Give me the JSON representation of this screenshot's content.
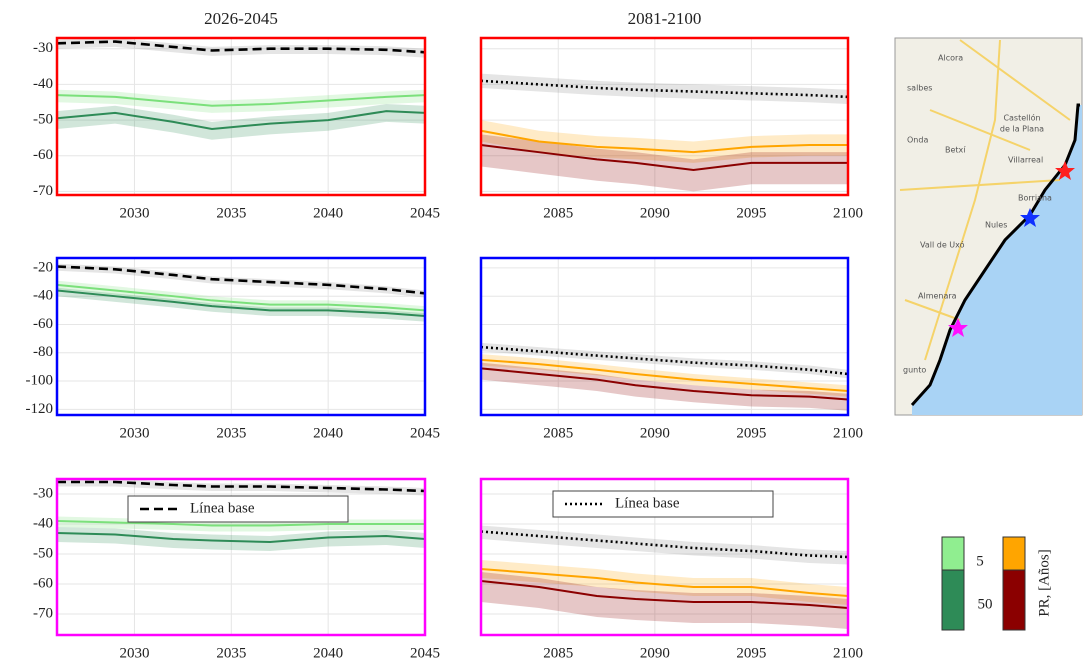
{
  "chart_data": [
    {
      "type": "line",
      "title": "2026-2045",
      "x": [
        2026,
        2029,
        2032,
        2034,
        2037,
        2040,
        2043,
        2045
      ],
      "xlim": [
        2026,
        2045
      ],
      "xticks": [
        2030,
        2035,
        2040,
        2045
      ],
      "ylim": [
        -71,
        -27
      ],
      "yticks": [
        -70,
        -60,
        -50,
        -40,
        -30
      ],
      "grid": true,
      "frame_color": "#ff0000",
      "show_ytick_labels": true,
      "series": [
        {
          "color": "#000000",
          "linestyle": "dashed",
          "values": [
            -28.5,
            -28,
            -29.5,
            -30.5,
            -30,
            -30,
            -30.3,
            -31
          ],
          "lower": [
            -30,
            -29.5,
            -31,
            -32,
            -31.5,
            -31.5,
            -31.8,
            -32.5
          ],
          "upper": [
            -27.5,
            -27,
            -28.5,
            -29.5,
            -29,
            -29,
            -29.3,
            -30
          ]
        },
        {
          "color": "#7be07b",
          "linestyle": "solid",
          "values": [
            -43,
            -43.5,
            -45,
            -46,
            -45.5,
            -44.5,
            -43.5,
            -43
          ],
          "lower": [
            -45,
            -45.5,
            -47,
            -48,
            -47.5,
            -46.5,
            -45.5,
            -45
          ],
          "upper": [
            -41.5,
            -42,
            -43.5,
            -44.5,
            -44,
            -43,
            -42,
            -41.5
          ]
        },
        {
          "color": "#2e8b57",
          "linestyle": "solid",
          "values": [
            -49.5,
            -48,
            -50.5,
            -52.5,
            -51,
            -50,
            -47.5,
            -48
          ],
          "lower": [
            -52.5,
            -51,
            -53.5,
            -55.5,
            -54,
            -53,
            -50.5,
            -51
          ],
          "upper": [
            -47.5,
            -46,
            -48.5,
            -50.5,
            -49,
            -48,
            -45.5,
            -46
          ]
        }
      ]
    },
    {
      "type": "line",
      "title": "2081-2100",
      "x": [
        2081,
        2084,
        2087,
        2089,
        2092,
        2095,
        2098,
        2100
      ],
      "xlim": [
        2081,
        2100
      ],
      "xticks": [
        2085,
        2090,
        2095,
        2100
      ],
      "ylim": [
        -71,
        -27
      ],
      "yticks": [
        -70,
        -60,
        -50,
        -40,
        -30
      ],
      "grid": true,
      "frame_color": "#ff0000",
      "show_ytick_labels": false,
      "series": [
        {
          "color": "#000000",
          "linestyle": "dotted",
          "values": [
            -39,
            -40,
            -41,
            -41.5,
            -42,
            -42.5,
            -43,
            -43.5
          ],
          "lower": [
            -41,
            -42,
            -43,
            -43.5,
            -44,
            -44.5,
            -45,
            -45.5
          ],
          "upper": [
            -37,
            -38,
            -39,
            -39.5,
            -40,
            -40.5,
            -41,
            -41.5
          ]
        },
        {
          "color": "#ffa500",
          "linestyle": "solid",
          "values": [
            -53,
            -56,
            -57.5,
            -58,
            -59,
            -57.5,
            -57,
            -57
          ],
          "lower": [
            -56,
            -59,
            -60.5,
            -61,
            -62,
            -60.5,
            -60,
            -60
          ],
          "upper": [
            -50,
            -53,
            -54.5,
            -55,
            -56,
            -54.5,
            -54,
            -54
          ]
        },
        {
          "color": "#8b0000",
          "linestyle": "solid",
          "values": [
            -57,
            -59,
            -61,
            -62,
            -64,
            -62,
            -62,
            -62
          ],
          "lower": [
            -63,
            -65,
            -67,
            -68,
            -70,
            -68,
            -68,
            -68
          ],
          "upper": [
            -54,
            -56,
            -58,
            -59,
            -61,
            -59,
            -59,
            -59
          ]
        }
      ]
    },
    {
      "type": "line",
      "x": [
        2026,
        2029,
        2032,
        2034,
        2037,
        2040,
        2043,
        2045
      ],
      "xlim": [
        2026,
        2045
      ],
      "xticks": [
        2030,
        2035,
        2040,
        2045
      ],
      "ylim": [
        -124,
        -13
      ],
      "yticks": [
        -120,
        -100,
        -80,
        -60,
        -40,
        -20
      ],
      "grid": true,
      "frame_color": "#0000ff",
      "show_ytick_labels": true,
      "series": [
        {
          "color": "#000000",
          "linestyle": "dashed",
          "values": [
            -19,
            -21,
            -25,
            -28,
            -30,
            -32,
            -35,
            -38
          ],
          "lower": [
            -22,
            -24,
            -28,
            -31,
            -33,
            -35,
            -38,
            -41
          ],
          "upper": [
            -17,
            -19,
            -23,
            -26,
            -28,
            -30,
            -33,
            -36
          ]
        },
        {
          "color": "#7be07b",
          "linestyle": "solid",
          "values": [
            -32,
            -36,
            -40,
            -43,
            -46,
            -46,
            -48,
            -50
          ],
          "lower": [
            -35,
            -39,
            -43,
            -46,
            -49,
            -49,
            -51,
            -53
          ],
          "upper": [
            -29,
            -33,
            -37,
            -40,
            -43,
            -43,
            -45,
            -47
          ]
        },
        {
          "color": "#2e8b57",
          "linestyle": "solid",
          "values": [
            -36,
            -40,
            -44,
            -47,
            -50,
            -50,
            -52,
            -54
          ],
          "lower": [
            -40,
            -44,
            -48,
            -51,
            -54,
            -54,
            -56,
            -58
          ],
          "upper": [
            -34,
            -38,
            -42,
            -45,
            -48,
            -48,
            -50,
            -52
          ]
        }
      ]
    },
    {
      "type": "line",
      "x": [
        2081,
        2084,
        2087,
        2089,
        2092,
        2095,
        2098,
        2100
      ],
      "xlim": [
        2081,
        2100
      ],
      "xticks": [
        2085,
        2090,
        2095,
        2100
      ],
      "ylim": [
        -124,
        -13
      ],
      "yticks": [
        -120,
        -100,
        -80,
        -60,
        -40,
        -20
      ],
      "grid": true,
      "frame_color": "#0000ff",
      "show_ytick_labels": false,
      "series": [
        {
          "color": "#000000",
          "linestyle": "dotted",
          "values": [
            -76,
            -79,
            -82,
            -84,
            -87,
            -89,
            -92,
            -95
          ],
          "lower": [
            -79,
            -82,
            -85,
            -87,
            -90,
            -92,
            -95,
            -98
          ],
          "upper": [
            -73,
            -76,
            -79,
            -81,
            -84,
            -86,
            -89,
            -92
          ]
        },
        {
          "color": "#ffa500",
          "linestyle": "solid",
          "values": [
            -85,
            -88,
            -92,
            -95,
            -99,
            -102,
            -105,
            -107
          ],
          "lower": [
            -89,
            -92,
            -96,
            -99,
            -103,
            -106,
            -109,
            -111
          ],
          "upper": [
            -81,
            -84,
            -88,
            -91,
            -95,
            -98,
            -101,
            -103
          ]
        },
        {
          "color": "#8b0000",
          "linestyle": "solid",
          "values": [
            -91,
            -95,
            -99,
            -103,
            -107,
            -110,
            -111,
            -113
          ],
          "lower": [
            -99,
            -103,
            -107,
            -111,
            -115,
            -118,
            -119,
            -121
          ],
          "upper": [
            -87,
            -91,
            -95,
            -99,
            -103,
            -106,
            -107,
            -109
          ]
        }
      ]
    },
    {
      "type": "line",
      "x": [
        2026,
        2029,
        2032,
        2034,
        2037,
        2040,
        2043,
        2045
      ],
      "xlim": [
        2026,
        2045
      ],
      "xticks": [
        2030,
        2035,
        2040,
        2045
      ],
      "ylim": [
        -77,
        -25
      ],
      "yticks": [
        -70,
        -60,
        -50,
        -40,
        -30
      ],
      "grid": true,
      "frame_color": "#ff00ff",
      "show_ytick_labels": true,
      "legend": true,
      "series": [
        {
          "name": "Línea base",
          "color": "#000000",
          "linestyle": "dashed",
          "values": [
            -26,
            -26,
            -27,
            -27.5,
            -27.5,
            -28,
            -28.5,
            -29
          ],
          "lower": [
            -27.5,
            -27.5,
            -28.5,
            -29,
            -29,
            -29.5,
            -30,
            -30.5
          ],
          "upper": [
            -25,
            -25,
            -26,
            -26.5,
            -26.5,
            -27,
            -27.5,
            -28
          ]
        },
        {
          "color": "#7be07b",
          "linestyle": "solid",
          "values": [
            -39,
            -39.5,
            -40,
            -40.5,
            -40.5,
            -40,
            -40,
            -40
          ],
          "lower": [
            -41,
            -41.5,
            -42,
            -42.5,
            -42.5,
            -42,
            -42,
            -42
          ],
          "upper": [
            -37.5,
            -38,
            -38.5,
            -39,
            -39,
            -38.5,
            -38.5,
            -38.5
          ]
        },
        {
          "color": "#2e8b57",
          "linestyle": "solid",
          "values": [
            -43,
            -43.5,
            -45,
            -45.5,
            -46,
            -44.5,
            -44,
            -45
          ],
          "lower": [
            -46,
            -46.5,
            -48,
            -48.5,
            -49,
            -47.5,
            -47,
            -48
          ],
          "upper": [
            -41,
            -41.5,
            -43,
            -43.5,
            -44,
            -42.5,
            -42,
            -43
          ]
        }
      ]
    },
    {
      "type": "line",
      "x": [
        2081,
        2084,
        2087,
        2089,
        2092,
        2095,
        2098,
        2100
      ],
      "xlim": [
        2081,
        2100
      ],
      "xticks": [
        2085,
        2090,
        2095,
        2100
      ],
      "ylim": [
        -77,
        -25
      ],
      "yticks": [
        -70,
        -60,
        -50,
        -40,
        -30
      ],
      "grid": true,
      "frame_color": "#ff00ff",
      "show_ytick_labels": false,
      "legend": true,
      "series": [
        {
          "name": "Línea base",
          "color": "#000000",
          "linestyle": "dotted",
          "values": [
            -42.5,
            -44,
            -45.5,
            -46.5,
            -48,
            -49,
            -50.5,
            -51
          ],
          "lower": [
            -45,
            -46.5,
            -48,
            -49,
            -50.5,
            -51.5,
            -53,
            -53.5
          ],
          "upper": [
            -40.5,
            -42,
            -43.5,
            -44.5,
            -46,
            -47,
            -48.5,
            -49
          ]
        },
        {
          "color": "#ffa500",
          "linestyle": "solid",
          "values": [
            -55,
            -56.5,
            -58,
            -59.5,
            -61,
            -61,
            -63,
            -64
          ],
          "lower": [
            -58,
            -59.5,
            -61,
            -62.5,
            -64,
            -64,
            -66,
            -67
          ],
          "upper": [
            -52,
            -53.5,
            -55,
            -56.5,
            -58,
            -58,
            -60,
            -61
          ]
        },
        {
          "color": "#8b0000",
          "linestyle": "solid",
          "values": [
            -59,
            -61,
            -64,
            -65,
            -66,
            -66,
            -67,
            -68
          ],
          "lower": [
            -66,
            -68,
            -71,
            -72,
            -73,
            -73,
            -74,
            -75
          ],
          "upper": [
            -56,
            -58,
            -61,
            -62,
            -63,
            -63,
            -64,
            -65
          ]
        }
      ]
    }
  ],
  "colorbar": {
    "title": "PR, [Años]",
    "entries": [
      {
        "label": "5",
        "colors": [
          "#90ee90",
          "#ffa500"
        ]
      },
      {
        "label": "50",
        "colors": [
          "#2e8b57",
          "#8b0000"
        ]
      }
    ]
  },
  "map": {
    "labels": [
      "Alcora",
      "salbes",
      "Castellón",
      "de la Plana",
      "Onda",
      "Betxí",
      "Villarreal",
      "Borriana",
      "Nules",
      "Vall de Uxó",
      "Almenara",
      "gunto"
    ]
  }
}
